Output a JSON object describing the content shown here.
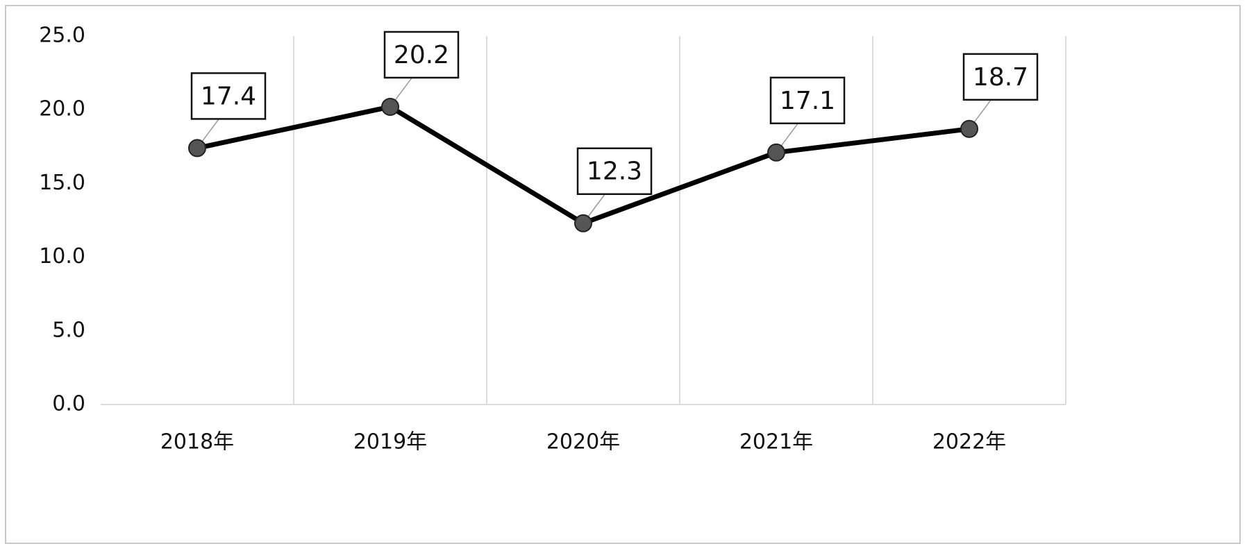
{
  "chart_data": {
    "type": "line",
    "categories": [
      "2018年",
      "2019年",
      "2020年",
      "2021年",
      "2022年"
    ],
    "values": [
      17.4,
      20.2,
      12.3,
      17.1,
      18.7
    ],
    "color": "#000000",
    "marker_color": "#555555",
    "ylim": [
      0,
      25
    ],
    "yticks": [
      {
        "value": 0,
        "label": "0.0"
      },
      {
        "value": 5,
        "label": "5.0"
      },
      {
        "value": 10,
        "label": "10.0"
      },
      {
        "value": 15,
        "label": "15.0"
      },
      {
        "value": 20,
        "label": "20.0"
      },
      {
        "value": 25,
        "label": "25.0"
      }
    ],
    "grid": true
  }
}
